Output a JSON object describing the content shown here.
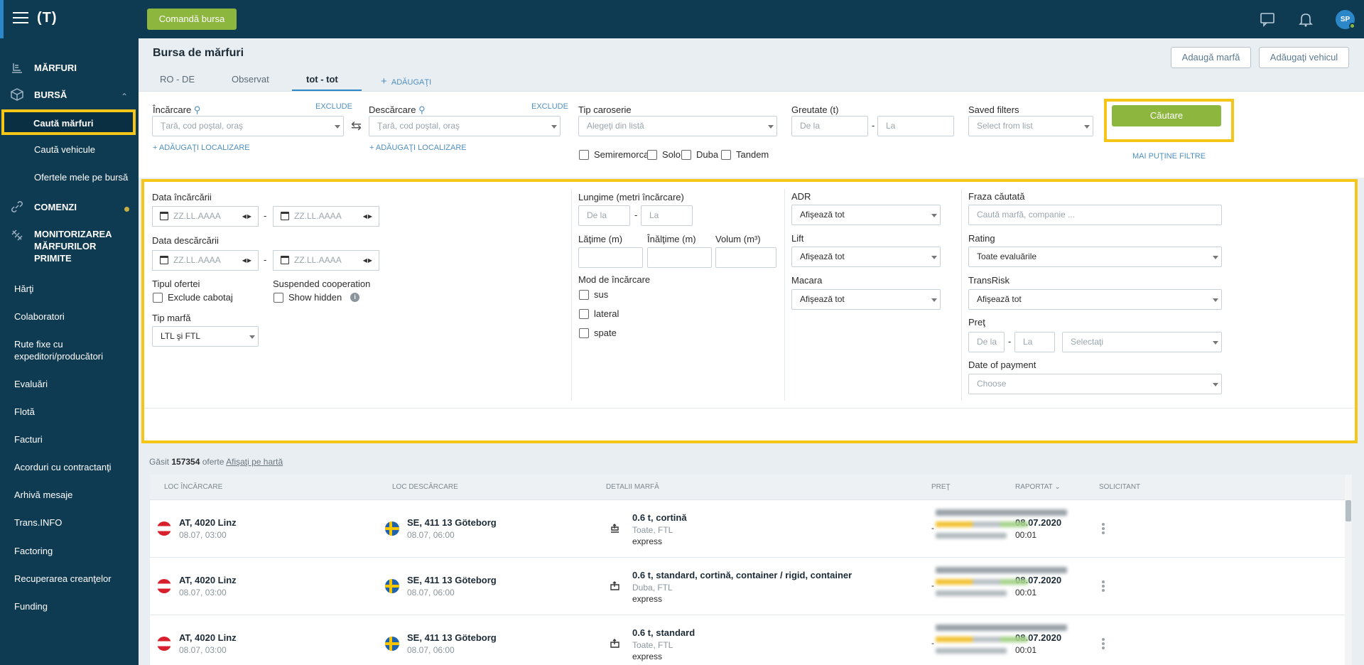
{
  "topbar": {
    "logo": "(T)",
    "order_button": "Comandă bursa",
    "avatar_initials": "SP"
  },
  "sidebar": {
    "marfuri": "MĂRFURI",
    "bursa": "BURSĂ",
    "bursa_sub": [
      "Caută mărfuri",
      "Caută vehicule",
      "Ofertele mele pe bursă"
    ],
    "comenzi": "COMENZI",
    "monitorizare": "MONITORIZAREA MĂRFURILOR PRIMITE",
    "links": [
      "Hărţi",
      "Colaboratori",
      "Rute fixe cu expeditori/producători",
      "Evaluări",
      "Flotă",
      "Facturi",
      "Acorduri cu contractanţi",
      "Arhivă mesaje",
      "Trans.INFO",
      "Factoring",
      "Recuperarea creanţelor",
      "Funding"
    ]
  },
  "page": {
    "title": "Bursa de mărfuri",
    "add_cargo_button": "Adaugă marfă",
    "add_vehicle_button": "Adăugaţi vehicul",
    "tabs": [
      "RO - DE",
      "Observat",
      "tot - tot"
    ],
    "add_tab": "ADĂUGAŢI"
  },
  "filters": {
    "loading_label": "Încărcare",
    "unloading_label": "Descărcare",
    "exclude": "EXCLUDE",
    "location_placeholder": "Ţară, cod poştal, oraş",
    "add_location": "ADĂUGAŢI LOCALIZARE",
    "body_type_label": "Tip caroserie",
    "body_type_placeholder": "Alegeţi din listă",
    "body_types": [
      "Semiremorca",
      "Solo",
      "Duba",
      "Tandem"
    ],
    "weight_label": "Greutate (t)",
    "from_placeholder": "De la",
    "to_placeholder": "La",
    "saved_filters_label": "Saved filters",
    "saved_filters_placeholder": "Select from list",
    "search_button": "Căutare",
    "fewer_filters": "MAI PUŢINE FILTRE"
  },
  "advanced": {
    "loading_date": "Data încărcării",
    "unloading_date": "Data descărcării",
    "date_placeholder": "ZZ.LL.AAAA",
    "offer_type": "Tipul ofertei",
    "exclude_cabotage": "Exclude cabotaj",
    "suspended": "Suspended cooperation",
    "show_hidden": "Show hidden",
    "cargo_type": "Tip marfă",
    "cargo_type_value": "LTL şi FTL",
    "length": "Lungime (metri încărcare)",
    "width": "Lăţime (m)",
    "height": "Înălţime (m)",
    "volume": "Volum (m³)",
    "loading_mode": "Mod de încărcare",
    "modes": [
      "sus",
      "lateral",
      "spate"
    ],
    "adr": "ADR",
    "lift": "Lift",
    "crane": "Macara",
    "show_all": "Afişează tot",
    "search_phrase": "Fraza căutată",
    "search_phrase_placeholder": "Caută marfă, companie ...",
    "rating": "Rating",
    "rating_value": "Toate evaluările",
    "transrisk": "TransRisk",
    "price": "Preţ",
    "select": "Selectaţi",
    "payment_date": "Date of payment",
    "choose": "Choose"
  },
  "results": {
    "found": "Găsit",
    "count": "157354",
    "offers": "oferte",
    "show_on_map": "Afişaţi pe hartă",
    "columns": [
      "LOC ÎNCĂRCARE",
      "LOC DESCĂRCARE",
      "DETALII MARFĂ",
      "PREŢ",
      "RAPORTAT",
      "SOLICITANT"
    ],
    "rows": [
      {
        "from": "AT, 4020 Linz",
        "from_time": "08.07, 03:00",
        "to": "SE, 411 13 Göteborg",
        "to_time": "08.07, 06:00",
        "cargo": "0.6 t, cortină",
        "sub": "Toate, FTL",
        "extra": "express",
        "price": "-",
        "date": "08.07.2020",
        "time": "00:01"
      },
      {
        "from": "AT, 4020 Linz",
        "from_time": "08.07, 03:00",
        "to": "SE, 411 13 Göteborg",
        "to_time": "08.07, 06:00",
        "cargo": "0.6 t, standard, cortină, container / rigid, container",
        "sub": "Duba, FTL",
        "extra": "express",
        "price": "-",
        "date": "08.07.2020",
        "time": "00:01"
      },
      {
        "from": "AT, 4020 Linz",
        "from_time": "08.07, 03:00",
        "to": "SE, 411 13 Göteborg",
        "to_time": "08.07, 06:00",
        "cargo": "0.6 t, standard",
        "sub": "Toate, FTL",
        "extra": "express",
        "price": "-",
        "date": "08.07.2020",
        "time": "00:01"
      }
    ]
  }
}
